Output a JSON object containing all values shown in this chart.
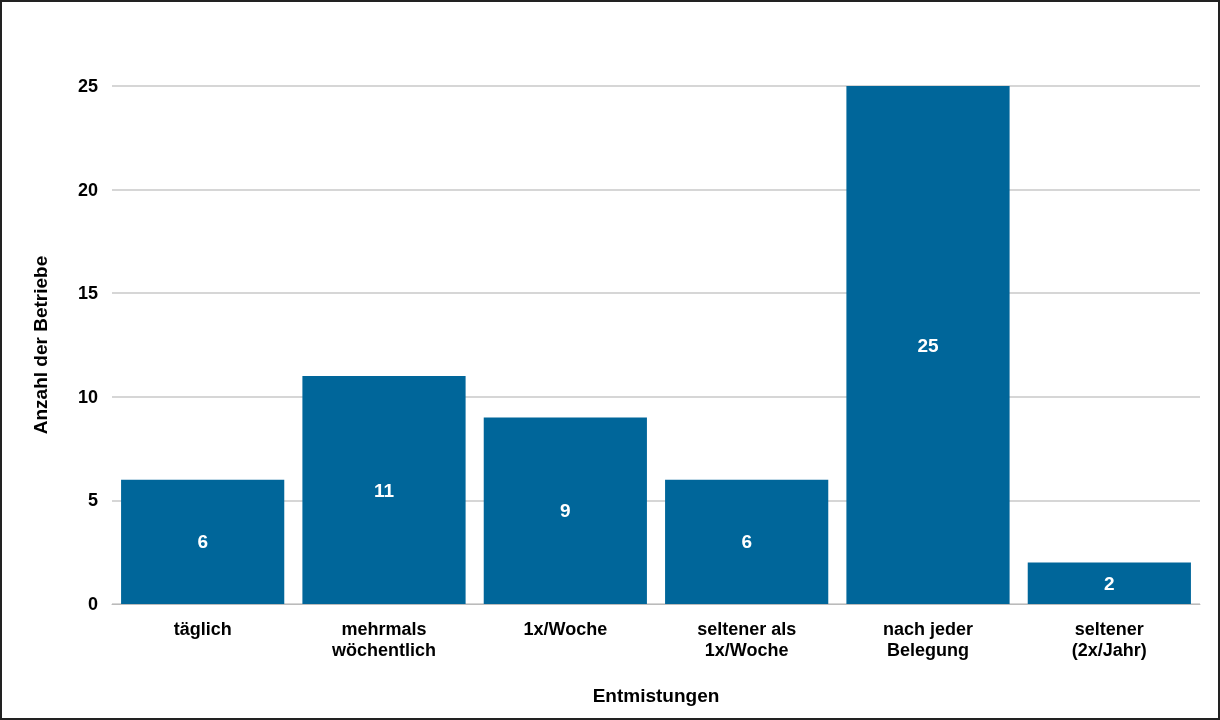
{
  "chart_data": {
    "type": "bar",
    "xlabel": "Entmistungen",
    "ylabel": "Anzahl der Betriebe",
    "categories": [
      "täglich",
      "mehrmals\nwöchentlich",
      "1x/Woche",
      "seltener als\n1x/Woche",
      "nach jeder\nBelegung",
      "seltener\n(2x/Jahr)"
    ],
    "values": [
      6,
      11,
      9,
      6,
      25,
      2
    ],
    "color": "#00669a",
    "ylim": [
      0,
      25
    ],
    "yticks": [
      0,
      5,
      10,
      15,
      20,
      25
    ],
    "grid": "y",
    "data_labels": true
  }
}
